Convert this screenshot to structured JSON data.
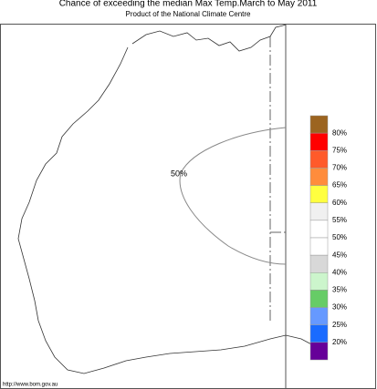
{
  "title": "Chance of exceeding the median Max Temp.March to May 2011",
  "subtitle": "Product of the National Climate Centre",
  "contour_label": "50%",
  "footer": "http://www.bom.gov.au",
  "legend": {
    "colors": [
      "#9c6420",
      "#ff0000",
      "#ff5a2a",
      "#ff8c3c",
      "#ffff40",
      "#f0f0f0",
      "#ffffff",
      "#ffffff",
      "#d8d8d8",
      "#ccf5cc",
      "#66cc66",
      "#6699ff",
      "#1a6bff",
      "#660099"
    ],
    "labels": [
      "80%",
      "75%",
      "70%",
      "65%",
      "60%",
      "55%",
      "50%",
      "45%",
      "40%",
      "35%",
      "30%",
      "25%",
      "20%"
    ]
  }
}
